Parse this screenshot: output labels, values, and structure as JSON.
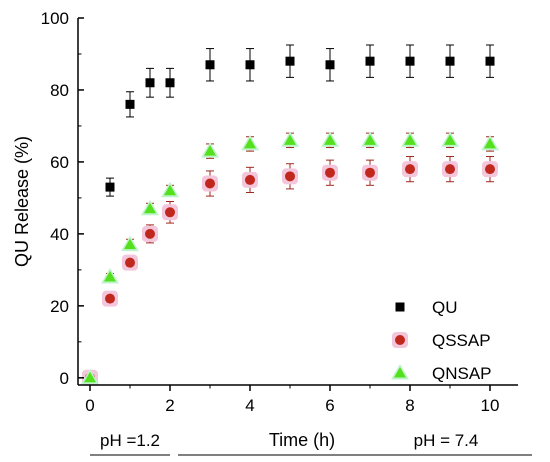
{
  "chart_data": {
    "type": "scatter",
    "xlabel": "Time (h)",
    "ylabel": "QU Release  (%)",
    "xlim": [
      -0.3,
      10.7
    ],
    "ylim": [
      -2,
      100
    ],
    "x_ticks": [
      0,
      2,
      4,
      6,
      8,
      10
    ],
    "y_ticks": [
      0,
      20,
      40,
      60,
      80,
      100
    ],
    "grid": false,
    "legend_position": "bottom-right",
    "annotations": [
      "pH =1.2",
      "pH = 7.4"
    ],
    "series": [
      {
        "name": "QU",
        "marker": "square",
        "color": "#000000",
        "x": [
          0,
          0.5,
          1,
          1.5,
          2,
          3,
          4,
          5,
          6,
          7,
          8,
          9,
          10
        ],
        "y": [
          0,
          53,
          76,
          82,
          82,
          87,
          87,
          88,
          87,
          88,
          88,
          88,
          88
        ],
        "error": [
          0,
          2.5,
          3.5,
          4,
          4,
          4.5,
          4.5,
          4.5,
          4.5,
          4.5,
          4.5,
          4.5,
          4.5
        ]
      },
      {
        "name": "QSSAP",
        "marker": "circle",
        "color": "#c0281e",
        "halo": "#f4c6dc",
        "x": [
          0,
          0.5,
          1,
          1.5,
          2,
          3,
          4,
          5,
          6,
          7,
          8,
          9,
          10
        ],
        "y": [
          0,
          22,
          32,
          40,
          46,
          54,
          55,
          56,
          57,
          57,
          58,
          58,
          58
        ],
        "error": [
          0,
          1.5,
          2,
          2.5,
          3,
          3.5,
          3.5,
          3.5,
          3.5,
          3.5,
          3.5,
          3.5,
          3.5
        ]
      },
      {
        "name": "QNSAP",
        "marker": "triangle",
        "color": "#55e01e",
        "halo": "#bff3cc",
        "x": [
          0,
          0.5,
          1,
          1.5,
          2,
          3,
          4,
          5,
          6,
          7,
          8,
          9,
          10
        ],
        "y": [
          0,
          28,
          37,
          47,
          52,
          63,
          65,
          66,
          66,
          66,
          66,
          66,
          65
        ],
        "error": [
          0,
          1,
          1.5,
          1.5,
          1.5,
          2,
          2,
          2,
          2,
          2,
          2,
          2,
          2
        ]
      }
    ]
  }
}
